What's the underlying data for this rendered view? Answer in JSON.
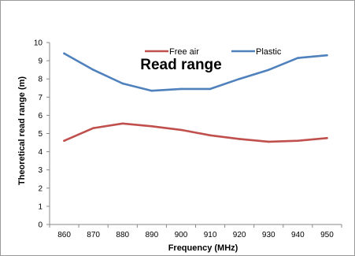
{
  "chart_data": {
    "type": "line",
    "title": "Read range",
    "xlabel": "Frequency (MHz)",
    "ylabel": "Theoretical read range (m)",
    "x": [
      860,
      870,
      880,
      890,
      900,
      910,
      920,
      930,
      940,
      950
    ],
    "ylim": [
      0,
      10
    ],
    "yticks": [
      0,
      1,
      2,
      3,
      4,
      5,
      6,
      7,
      8,
      9,
      10
    ],
    "grid": false,
    "legend": "top-center",
    "series": [
      {
        "name": "Free air",
        "color": "#c0504d",
        "values": [
          4.6,
          5.3,
          5.55,
          5.4,
          5.2,
          4.9,
          4.7,
          4.55,
          4.6,
          4.75
        ]
      },
      {
        "name": "Plastic",
        "color": "#4f81bd",
        "values": [
          9.4,
          8.5,
          7.75,
          7.35,
          7.45,
          7.45,
          8.0,
          8.5,
          9.15,
          9.3
        ]
      }
    ]
  }
}
